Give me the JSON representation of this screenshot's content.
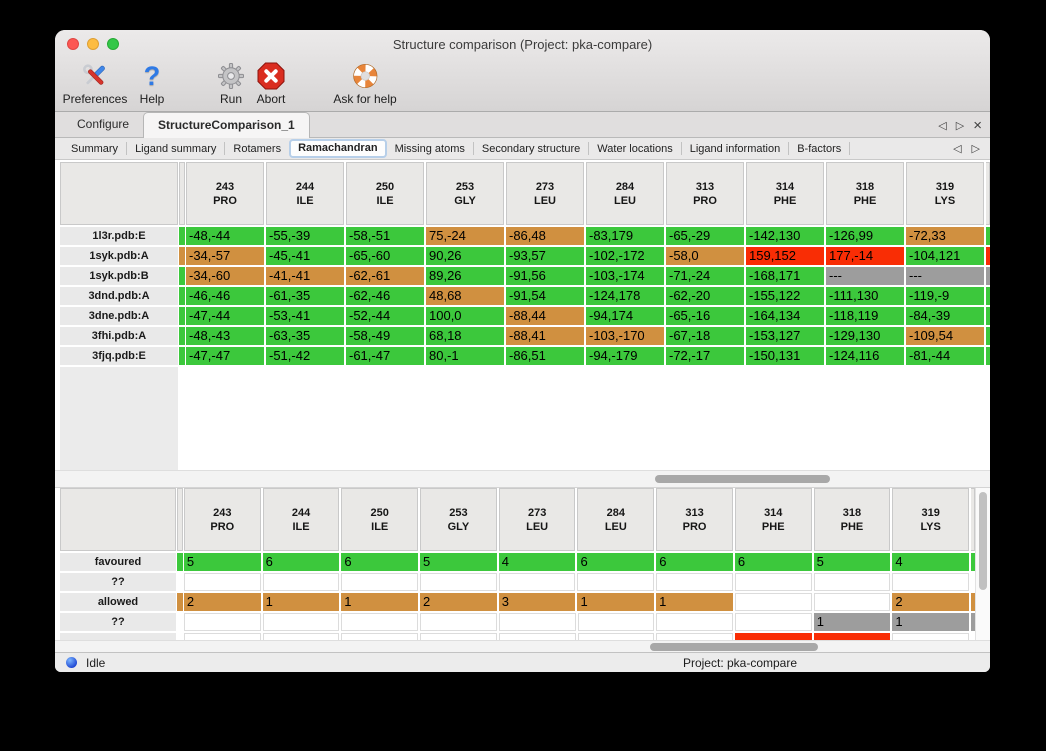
{
  "window": {
    "title": "Structure comparison (Project: pka-compare)"
  },
  "toolbar": {
    "items": [
      {
        "label": "Preferences",
        "icon": "tools-icon"
      },
      {
        "label": "Help",
        "icon": "question-mark-icon"
      },
      {
        "label": "Run",
        "icon": "gear-icon"
      },
      {
        "label": "Abort",
        "icon": "stop-icon"
      },
      {
        "label": "Ask for help",
        "icon": "life-ring-icon"
      }
    ]
  },
  "tabs": {
    "items": [
      "Configure",
      "StructureComparison_1"
    ],
    "selected": "StructureComparison_1"
  },
  "subtabs": {
    "items": [
      "Summary",
      "Ligand summary",
      "Rotamers",
      "Ramachandran",
      "Missing atoms",
      "Secondary structure",
      "Water locations",
      "Ligand information",
      "B-factors"
    ],
    "selected": "Ramachandran"
  },
  "glyphs": {
    "left_arrow": "◁",
    "right_arrow": "▷",
    "close": "×"
  },
  "colors": {
    "g": "#3cc83c",
    "o": "#d09040",
    "r": "#f92d05",
    "x": "#9d9d9d",
    "w": "#ffffff"
  },
  "columns": [
    {
      "num": "243",
      "res": "PRO"
    },
    {
      "num": "244",
      "res": "ILE"
    },
    {
      "num": "250",
      "res": "ILE"
    },
    {
      "num": "253",
      "res": "GLY"
    },
    {
      "num": "273",
      "res": "LEU"
    },
    {
      "num": "284",
      "res": "LEU"
    },
    {
      "num": "313",
      "res": "PRO"
    },
    {
      "num": "314",
      "res": "PHE"
    },
    {
      "num": "318",
      "res": "PHE"
    },
    {
      "num": "319",
      "res": "LYS"
    }
  ],
  "top_table": {
    "rows": [
      {
        "label": "1l3r.pdb:E",
        "left": "g",
        "right": "g",
        "cells": [
          {
            "t": "-48,-44",
            "c": "g"
          },
          {
            "t": "-55,-39",
            "c": "g"
          },
          {
            "t": "-58,-51",
            "c": "g"
          },
          {
            "t": "75,-24",
            "c": "o"
          },
          {
            "t": "-86,48",
            "c": "o"
          },
          {
            "t": "-83,179",
            "c": "g"
          },
          {
            "t": "-65,-29",
            "c": "g"
          },
          {
            "t": "-142,130",
            "c": "g"
          },
          {
            "t": "-126,99",
            "c": "g"
          },
          {
            "t": "-72,33",
            "c": "o"
          }
        ]
      },
      {
        "label": "1syk.pdb:A",
        "left": "o",
        "right": "r",
        "cells": [
          {
            "t": "-34,-57",
            "c": "o"
          },
          {
            "t": "-45,-41",
            "c": "g"
          },
          {
            "t": "-65,-60",
            "c": "g"
          },
          {
            "t": "90,26",
            "c": "g"
          },
          {
            "t": "-93,57",
            "c": "g"
          },
          {
            "t": "-102,-172",
            "c": "g"
          },
          {
            "t": "-58,0",
            "c": "o"
          },
          {
            "t": "159,152",
            "c": "r"
          },
          {
            "t": "177,-14",
            "c": "r"
          },
          {
            "t": "-104,121",
            "c": "g"
          }
        ]
      },
      {
        "label": "1syk.pdb:B",
        "left": "g",
        "right": "x",
        "cells": [
          {
            "t": "-34,-60",
            "c": "o"
          },
          {
            "t": "-41,-41",
            "c": "o"
          },
          {
            "t": "-62,-61",
            "c": "o"
          },
          {
            "t": "89,26",
            "c": "g"
          },
          {
            "t": "-91,56",
            "c": "g"
          },
          {
            "t": "-103,-174",
            "c": "g"
          },
          {
            "t": "-71,-24",
            "c": "g"
          },
          {
            "t": "-168,171",
            "c": "g"
          },
          {
            "t": "---",
            "c": "x"
          },
          {
            "t": "---",
            "c": "x"
          }
        ]
      },
      {
        "label": "3dnd.pdb:A",
        "left": "g",
        "right": "g",
        "cells": [
          {
            "t": "-46,-46",
            "c": "g"
          },
          {
            "t": "-61,-35",
            "c": "g"
          },
          {
            "t": "-62,-46",
            "c": "g"
          },
          {
            "t": "48,68",
            "c": "o"
          },
          {
            "t": "-91,54",
            "c": "g"
          },
          {
            "t": "-124,178",
            "c": "g"
          },
          {
            "t": "-62,-20",
            "c": "g"
          },
          {
            "t": "-155,122",
            "c": "g"
          },
          {
            "t": "-111,130",
            "c": "g"
          },
          {
            "t": "-119,-9",
            "c": "g"
          }
        ]
      },
      {
        "label": "3dne.pdb:A",
        "left": "g",
        "right": "g",
        "cells": [
          {
            "t": "-47,-44",
            "c": "g"
          },
          {
            "t": "-53,-41",
            "c": "g"
          },
          {
            "t": "-52,-44",
            "c": "g"
          },
          {
            "t": "100,0",
            "c": "g"
          },
          {
            "t": "-88,44",
            "c": "o"
          },
          {
            "t": "-94,174",
            "c": "g"
          },
          {
            "t": "-65,-16",
            "c": "g"
          },
          {
            "t": "-164,134",
            "c": "g"
          },
          {
            "t": "-118,119",
            "c": "g"
          },
          {
            "t": "-84,-39",
            "c": "g"
          }
        ]
      },
      {
        "label": "3fhi.pdb:A",
        "left": "g",
        "right": "g",
        "cells": [
          {
            "t": "-48,-43",
            "c": "g"
          },
          {
            "t": "-63,-35",
            "c": "g"
          },
          {
            "t": "-58,-49",
            "c": "g"
          },
          {
            "t": "68,18",
            "c": "g"
          },
          {
            "t": "-88,41",
            "c": "o"
          },
          {
            "t": "-103,-170",
            "c": "o"
          },
          {
            "t": "-67,-18",
            "c": "g"
          },
          {
            "t": "-153,127",
            "c": "g"
          },
          {
            "t": "-129,130",
            "c": "g"
          },
          {
            "t": "-109,54",
            "c": "o"
          }
        ]
      },
      {
        "label": "3fjq.pdb:E",
        "left": "g",
        "right": "g",
        "cells": [
          {
            "t": "-47,-47",
            "c": "g"
          },
          {
            "t": "-51,-42",
            "c": "g"
          },
          {
            "t": "-61,-47",
            "c": "g"
          },
          {
            "t": "80,-1",
            "c": "g"
          },
          {
            "t": "-86,51",
            "c": "g"
          },
          {
            "t": "-94,-179",
            "c": "g"
          },
          {
            "t": "-72,-17",
            "c": "g"
          },
          {
            "t": "-150,131",
            "c": "g"
          },
          {
            "t": "-124,116",
            "c": "g"
          },
          {
            "t": "-81,-44",
            "c": "g"
          }
        ]
      }
    ]
  },
  "bottom_table": {
    "rows": [
      {
        "label": "favoured",
        "left": "g",
        "right": "g",
        "cells": [
          {
            "t": "5",
            "c": "g"
          },
          {
            "t": "6",
            "c": "g"
          },
          {
            "t": "6",
            "c": "g"
          },
          {
            "t": "5",
            "c": "g"
          },
          {
            "t": "4",
            "c": "g"
          },
          {
            "t": "6",
            "c": "g"
          },
          {
            "t": "6",
            "c": "g"
          },
          {
            "t": "6",
            "c": "g"
          },
          {
            "t": "5",
            "c": "g"
          },
          {
            "t": "4",
            "c": "g"
          }
        ]
      },
      {
        "label": "??",
        "left": "w",
        "right": "w",
        "cells": [
          {
            "t": "",
            "c": "w"
          },
          {
            "t": "",
            "c": "w"
          },
          {
            "t": "",
            "c": "w"
          },
          {
            "t": "",
            "c": "w"
          },
          {
            "t": "",
            "c": "w"
          },
          {
            "t": "",
            "c": "w"
          },
          {
            "t": "",
            "c": "w"
          },
          {
            "t": "",
            "c": "w"
          },
          {
            "t": "",
            "c": "w"
          },
          {
            "t": "",
            "c": "w"
          }
        ]
      },
      {
        "label": "allowed",
        "left": "o",
        "right": "o",
        "cells": [
          {
            "t": "2",
            "c": "o"
          },
          {
            "t": "1",
            "c": "o"
          },
          {
            "t": "1",
            "c": "o"
          },
          {
            "t": "2",
            "c": "o"
          },
          {
            "t": "3",
            "c": "o"
          },
          {
            "t": "1",
            "c": "o"
          },
          {
            "t": "1",
            "c": "o"
          },
          {
            "t": "",
            "c": "w"
          },
          {
            "t": "",
            "c": "w"
          },
          {
            "t": "2",
            "c": "o"
          }
        ]
      },
      {
        "label": "??",
        "left": "w",
        "right": "x",
        "cells": [
          {
            "t": "",
            "c": "w"
          },
          {
            "t": "",
            "c": "w"
          },
          {
            "t": "",
            "c": "w"
          },
          {
            "t": "",
            "c": "w"
          },
          {
            "t": "",
            "c": "w"
          },
          {
            "t": "",
            "c": "w"
          },
          {
            "t": "",
            "c": "w"
          },
          {
            "t": "",
            "c": "w"
          },
          {
            "t": "1",
            "c": "x"
          },
          {
            "t": "1",
            "c": "x"
          }
        ]
      },
      {
        "label": "",
        "left": "w",
        "right": "w",
        "partial": true,
        "cells": [
          {
            "t": "",
            "c": "w"
          },
          {
            "t": "",
            "c": "w"
          },
          {
            "t": "",
            "c": "w"
          },
          {
            "t": "",
            "c": "w"
          },
          {
            "t": "",
            "c": "w"
          },
          {
            "t": "",
            "c": "w"
          },
          {
            "t": "",
            "c": "w"
          },
          {
            "t": "",
            "c": "r"
          },
          {
            "t": "",
            "c": "r"
          },
          {
            "t": "",
            "c": "w"
          }
        ]
      }
    ]
  },
  "statusbar": {
    "status": "Idle",
    "project": "Project: pka-compare"
  }
}
